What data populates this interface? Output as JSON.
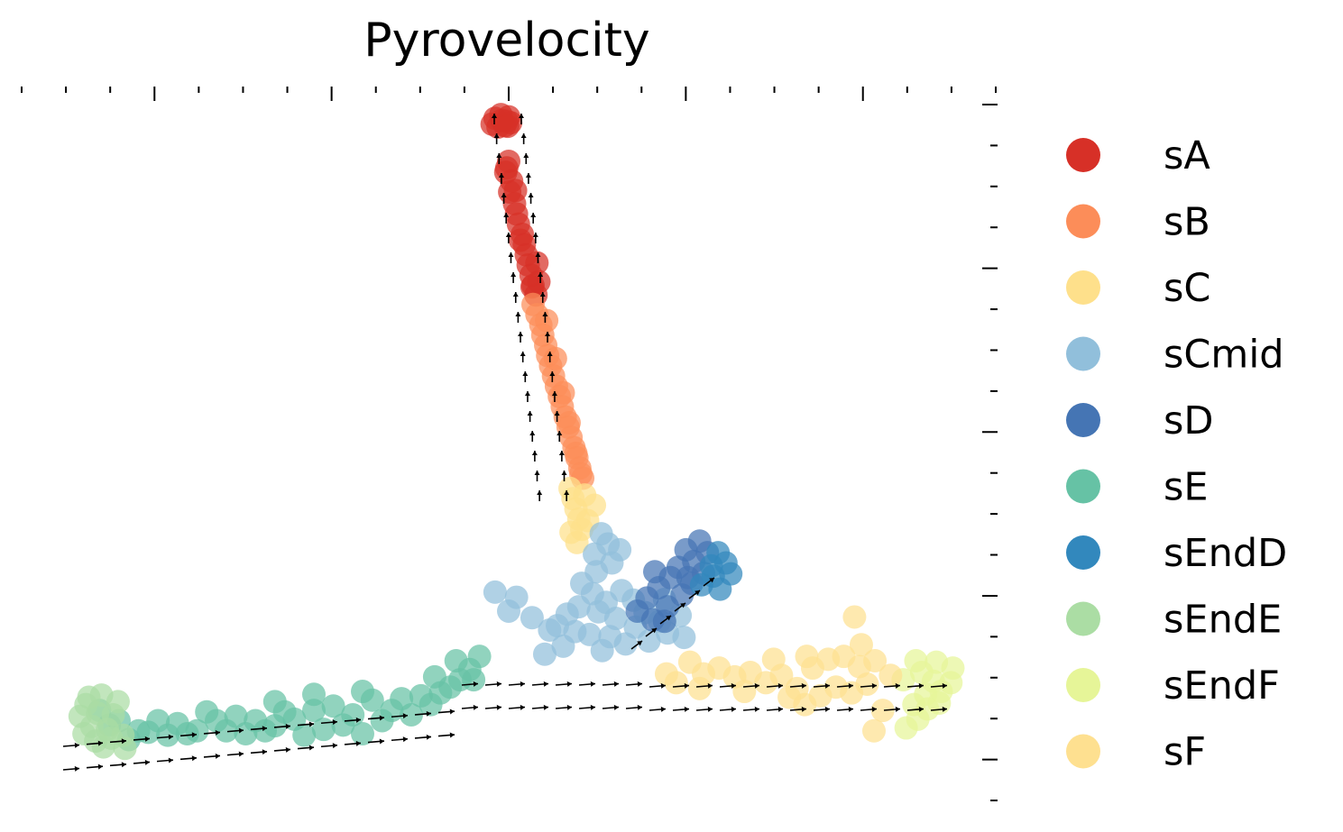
{
  "chart_data": {
    "type": "scatter",
    "title": "Pyrovelocity",
    "xlabel": "",
    "ylabel": "",
    "xlim": [
      0,
      100
    ],
    "ylim": [
      0,
      100
    ],
    "grid": false,
    "legend_position": "right",
    "arrows": "velocity field (black quiver arrows over the embedding)",
    "series": [
      {
        "name": "sA",
        "color": "#d73027",
        "points": [
          [
            48.6,
            95.9
          ],
          [
            49.2,
            96.4
          ],
          [
            49.8,
            95.5
          ],
          [
            48.9,
            94.7
          ],
          [
            49.6,
            94.9
          ],
          [
            50.2,
            95.3
          ],
          [
            48.3,
            95.1
          ],
          [
            50.0,
            96.1
          ],
          [
            49.3,
            95.6
          ],
          [
            49.9,
            94.8
          ],
          [
            50.0,
            90.0
          ],
          [
            49.7,
            88.5
          ],
          [
            50.3,
            87.3
          ],
          [
            50.1,
            85.8
          ],
          [
            50.6,
            84.2
          ],
          [
            50.8,
            82.8
          ],
          [
            51.0,
            81.4
          ],
          [
            51.4,
            80.0
          ],
          [
            51.6,
            78.6
          ],
          [
            51.8,
            77.2
          ],
          [
            52.0,
            75.8
          ],
          [
            52.3,
            74.4
          ],
          [
            52.5,
            73.0
          ],
          [
            52.8,
            71.7
          ],
          [
            52.4,
            72.8
          ],
          [
            53.1,
            73.5
          ],
          [
            52.9,
            76.1
          ],
          [
            51.2,
            79.2
          ],
          [
            50.7,
            86.0
          ],
          [
            49.8,
            89.1
          ]
        ]
      },
      {
        "name": "sB",
        "color": "#fc8d59",
        "points": [
          [
            52.5,
            70.4
          ],
          [
            52.9,
            69.0
          ],
          [
            53.3,
            67.6
          ],
          [
            53.5,
            66.2
          ],
          [
            53.8,
            64.8
          ],
          [
            54.0,
            63.4
          ],
          [
            54.3,
            62.0
          ],
          [
            54.6,
            60.6
          ],
          [
            54.9,
            59.2
          ],
          [
            55.2,
            57.8
          ],
          [
            55.5,
            56.4
          ],
          [
            55.8,
            55.0
          ],
          [
            56.1,
            53.6
          ],
          [
            56.4,
            52.2
          ],
          [
            56.7,
            50.8
          ],
          [
            57.0,
            49.4
          ],
          [
            57.3,
            48.0
          ],
          [
            57.6,
            46.6
          ],
          [
            53.9,
            68.2
          ],
          [
            54.8,
            63.0
          ],
          [
            55.6,
            58.3
          ],
          [
            56.2,
            54.2
          ],
          [
            56.9,
            50.0
          ],
          [
            57.4,
            47.2
          ]
        ]
      },
      {
        "name": "sC",
        "color": "#fee08b",
        "points": [
          [
            56.3,
            45.2
          ],
          [
            56.6,
            43.8
          ],
          [
            56.9,
            42.4
          ],
          [
            57.2,
            41.0
          ],
          [
            57.5,
            39.6
          ],
          [
            58.1,
            40.8
          ],
          [
            57.8,
            44.3
          ],
          [
            58.8,
            42.9
          ],
          [
            56.4,
            39.2
          ],
          [
            57.0,
            37.8
          ]
        ]
      },
      {
        "name": "sCmid",
        "color": "#91bfdb",
        "points": [
          [
            59.5,
            39.0
          ],
          [
            60.2,
            37.6
          ],
          [
            58.8,
            36.2
          ],
          [
            60.6,
            35.0
          ],
          [
            61.4,
            36.8
          ],
          [
            59.0,
            33.8
          ],
          [
            57.5,
            32.2
          ],
          [
            58.6,
            30.8
          ],
          [
            60.0,
            29.6
          ],
          [
            61.6,
            31.2
          ],
          [
            62.8,
            29.9
          ],
          [
            64.0,
            28.2
          ],
          [
            65.5,
            27.0
          ],
          [
            63.0,
            26.2
          ],
          [
            61.0,
            27.4
          ],
          [
            59.2,
            28.3
          ],
          [
            57.2,
            29.0
          ],
          [
            56.0,
            28.0
          ],
          [
            55.0,
            26.4
          ],
          [
            56.8,
            25.6
          ],
          [
            58.3,
            25.2
          ],
          [
            60.4,
            24.9
          ],
          [
            62.0,
            23.9
          ],
          [
            64.4,
            24.3
          ],
          [
            66.3,
            25.4
          ],
          [
            67.6,
            27.8
          ],
          [
            66.0,
            30.0
          ],
          [
            55.6,
            23.6
          ],
          [
            54.2,
            25.8
          ],
          [
            50.0,
            28.4
          ],
          [
            48.6,
            31.0
          ],
          [
            50.8,
            30.3
          ],
          [
            52.4,
            27.5
          ],
          [
            53.7,
            22.5
          ],
          [
            59.6,
            23.0
          ],
          [
            68.0,
            24.8
          ]
        ]
      },
      {
        "name": "sD",
        "color": "#4575b4",
        "points": [
          [
            64.2,
            30.2
          ],
          [
            65.4,
            31.6
          ],
          [
            66.6,
            33.0
          ],
          [
            67.4,
            34.4
          ],
          [
            68.4,
            33.0
          ],
          [
            69.0,
            35.2
          ],
          [
            68.2,
            36.8
          ],
          [
            69.6,
            38.0
          ],
          [
            70.4,
            36.4
          ],
          [
            66.3,
            29.0
          ],
          [
            67.8,
            30.6
          ],
          [
            68.8,
            32.2
          ],
          [
            70.0,
            33.6
          ],
          [
            63.2,
            28.4
          ],
          [
            64.8,
            27.2
          ],
          [
            66.0,
            27.0
          ],
          [
            65.0,
            33.8
          ]
        ]
      },
      {
        "name": "sE",
        "color": "#66c2a5",
        "points": [
          [
            8.0,
            14.8
          ],
          [
            10.0,
            13.4
          ],
          [
            12.0,
            12.0
          ],
          [
            14.0,
            13.4
          ],
          [
            16.0,
            13.0
          ],
          [
            18.0,
            12.0
          ],
          [
            20.0,
            13.4
          ],
          [
            22.0,
            14.0
          ],
          [
            24.0,
            13.4
          ],
          [
            26.0,
            12.7
          ],
          [
            28.0,
            13.6
          ],
          [
            30.0,
            14.8
          ],
          [
            32.0,
            15.4
          ],
          [
            34.0,
            14.2
          ],
          [
            36.0,
            16.2
          ],
          [
            38.0,
            14.8
          ],
          [
            40.0,
            14.2
          ],
          [
            42.0,
            15.6
          ],
          [
            44.0,
            18.0
          ],
          [
            46.0,
            20.4
          ],
          [
            47.0,
            22.2
          ],
          [
            45.0,
            19.0
          ],
          [
            43.0,
            17.2
          ],
          [
            41.0,
            16.8
          ],
          [
            39.0,
            16.4
          ],
          [
            37.0,
            13.4
          ],
          [
            35.0,
            11.6
          ],
          [
            33.0,
            12.8
          ],
          [
            31.0,
            12.2
          ],
          [
            29.0,
            11.4
          ],
          [
            27.0,
            14.6
          ],
          [
            25.0,
            12.0
          ],
          [
            23.0,
            11.6
          ],
          [
            21.0,
            12.0
          ],
          [
            19.0,
            14.6
          ],
          [
            17.0,
            11.6
          ],
          [
            15.0,
            11.4
          ],
          [
            13.0,
            11.8
          ],
          [
            11.0,
            10.8
          ],
          [
            9.0,
            12.8
          ],
          [
            30.0,
            17.0
          ],
          [
            26.0,
            16.0
          ],
          [
            35.0,
            17.4
          ],
          [
            44.6,
            21.6
          ],
          [
            46.4,
            19.0
          ],
          [
            42.4,
            19.4
          ]
        ]
      },
      {
        "name": "sEndD",
        "color": "#3288bd",
        "points": [
          [
            70.8,
            34.6
          ],
          [
            71.5,
            36.4
          ],
          [
            72.3,
            35.0
          ],
          [
            71.0,
            33.2
          ],
          [
            69.8,
            32.0
          ],
          [
            72.8,
            33.5
          ],
          [
            71.7,
            31.4
          ]
        ]
      },
      {
        "name": "sEndE",
        "color": "#abdda4",
        "points": [
          [
            6.0,
            14.0
          ],
          [
            6.6,
            15.6
          ],
          [
            7.2,
            12.6
          ],
          [
            6.4,
            11.6
          ],
          [
            7.6,
            10.6
          ],
          [
            8.4,
            9.8
          ],
          [
            9.2,
            11.0
          ],
          [
            8.8,
            12.2
          ],
          [
            7.8,
            14.4
          ],
          [
            9.4,
            14.2
          ],
          [
            10.4,
            11.4
          ],
          [
            10.6,
            9.6
          ],
          [
            6.9,
            16.6
          ],
          [
            9.9,
            16.0
          ],
          [
            8.2,
            16.9
          ]
        ]
      },
      {
        "name": "sEndF",
        "color": "#e6f598",
        "points": [
          [
            92.4,
            20.0
          ],
          [
            93.6,
            18.8
          ],
          [
            94.4,
            17.4
          ],
          [
            92.8,
            17.0
          ],
          [
            91.6,
            15.6
          ],
          [
            93.0,
            15.0
          ],
          [
            94.2,
            15.8
          ],
          [
            95.4,
            18.6
          ],
          [
            95.6,
            20.6
          ],
          [
            92.0,
            13.6
          ],
          [
            90.8,
            12.4
          ],
          [
            91.8,
            21.6
          ],
          [
            90.5,
            19.0
          ],
          [
            93.9,
            21.4
          ]
        ]
      },
      {
        "name": "sF",
        "color": "#fee090",
        "points": [
          [
            68.6,
            21.4
          ],
          [
            70.0,
            19.8
          ],
          [
            71.6,
            20.6
          ],
          [
            73.2,
            19.4
          ],
          [
            74.8,
            20.0
          ],
          [
            76.4,
            18.6
          ],
          [
            78.0,
            19.6
          ],
          [
            79.6,
            17.8
          ],
          [
            81.2,
            20.6
          ],
          [
            82.8,
            21.8
          ],
          [
            84.4,
            22.2
          ],
          [
            86.0,
            20.8
          ],
          [
            87.6,
            21.6
          ],
          [
            89.2,
            19.6
          ],
          [
            78.8,
            16.6
          ],
          [
            80.4,
            15.6
          ],
          [
            82.0,
            16.8
          ],
          [
            83.6,
            18.0
          ],
          [
            85.2,
            17.2
          ],
          [
            86.8,
            18.4
          ],
          [
            88.4,
            14.8
          ],
          [
            87.5,
            12.0
          ],
          [
            86.2,
            23.8
          ],
          [
            85.5,
            27.6
          ],
          [
            67.2,
            18.6
          ],
          [
            66.2,
            19.8
          ],
          [
            69.6,
            17.8
          ],
          [
            77.2,
            21.8
          ],
          [
            80.6,
            22.2
          ],
          [
            74.2,
            17.4
          ]
        ]
      }
    ]
  }
}
